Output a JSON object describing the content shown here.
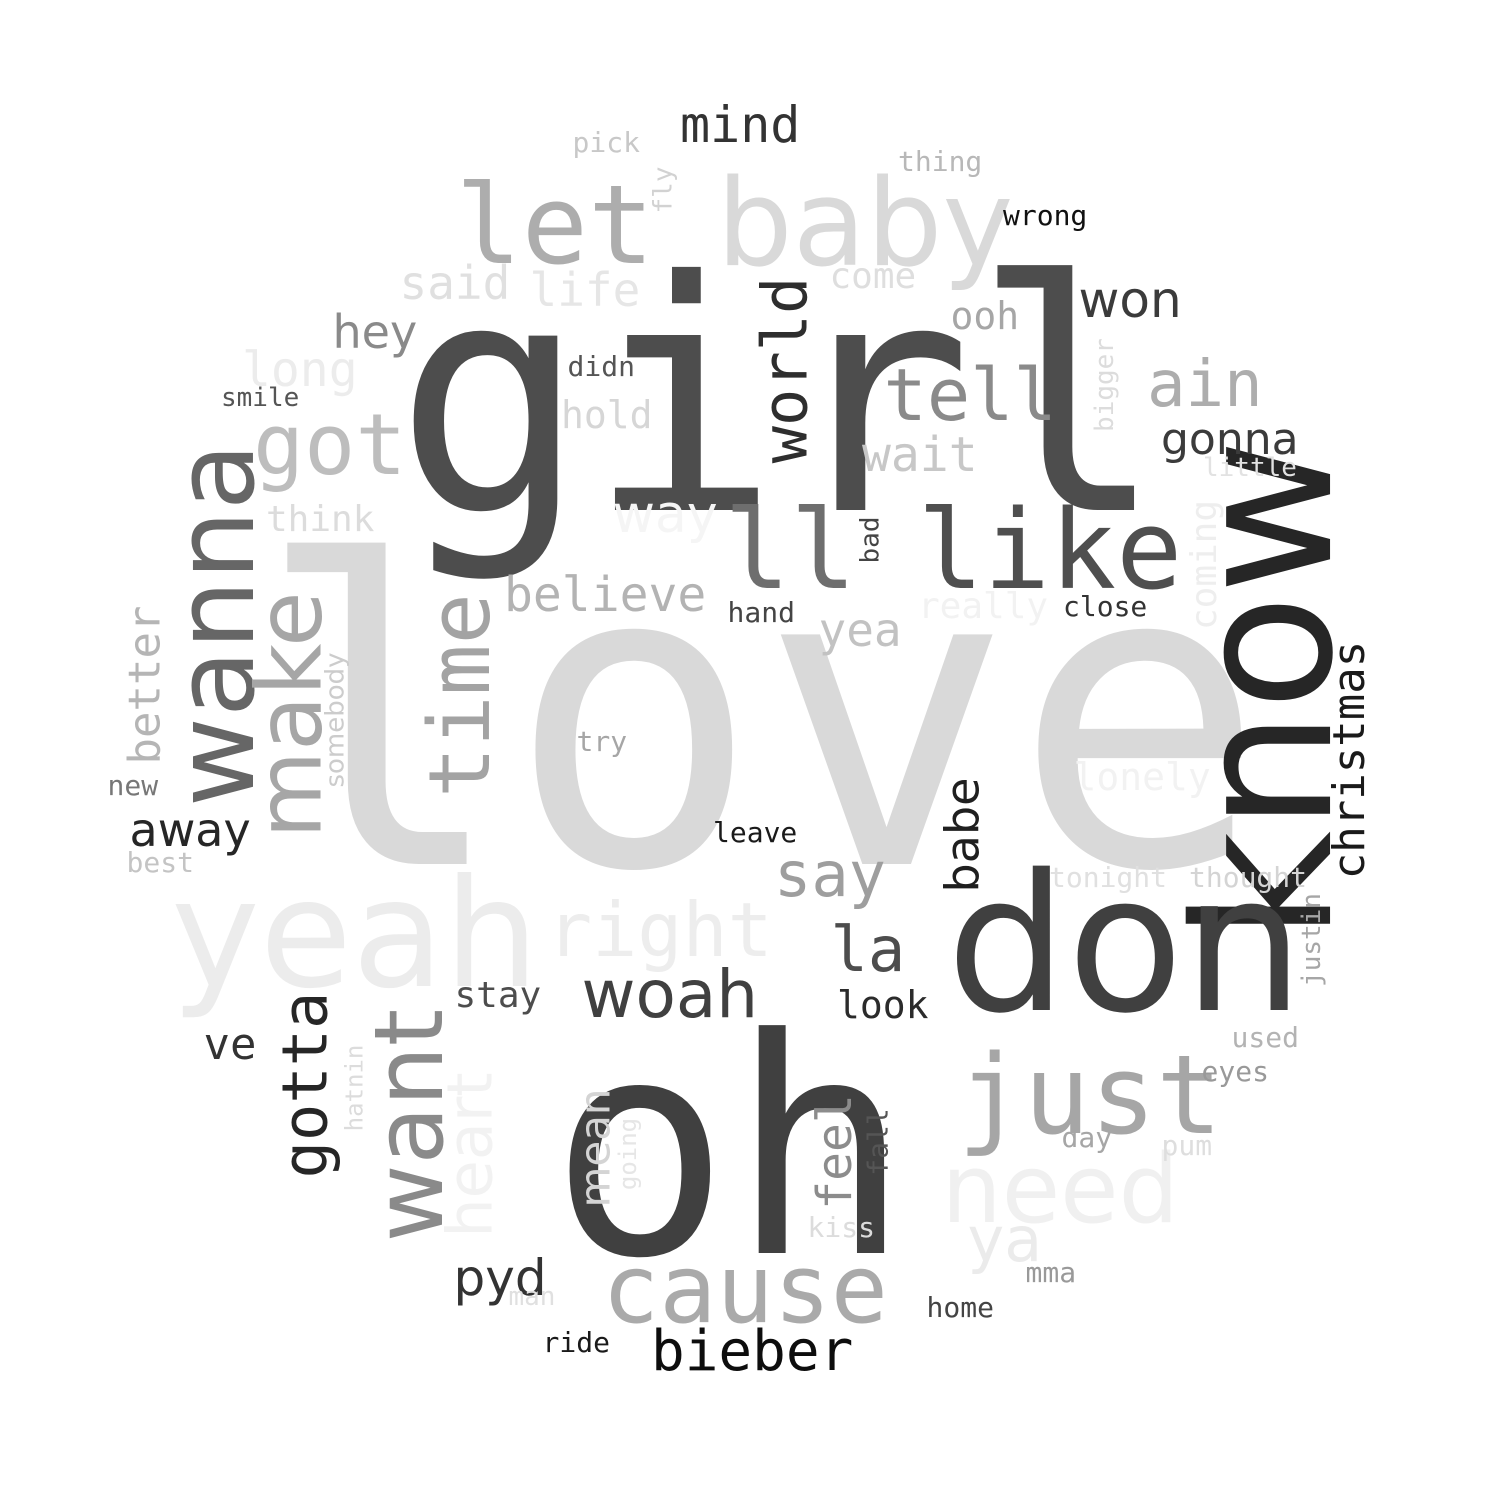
{
  "words": [
    {
      "text": "love",
      "color": "#d9d9d9"
    },
    {
      "text": "girl",
      "color": "#4d4d4d"
    },
    {
      "text": "oh",
      "color": "#404040"
    },
    {
      "text": "know",
      "color": "#262626"
    },
    {
      "text": "don",
      "color": "#404040"
    },
    {
      "text": "yeah",
      "color": "#ececec"
    },
    {
      "text": "baby",
      "color": "#d9d9d9"
    },
    {
      "text": "let",
      "color": "#adadad"
    },
    {
      "text": "like",
      "color": "#4f4f4f"
    },
    {
      "text": "ll",
      "color": "#6e6e6e"
    },
    {
      "text": "wanna",
      "color": "#666666"
    },
    {
      "text": "just",
      "color": "#a6a6a6"
    },
    {
      "text": "cause",
      "color": "#aaaaaa"
    },
    {
      "text": "want",
      "color": "#8a8a8a"
    },
    {
      "text": "need",
      "color": "#f0f0f0"
    },
    {
      "text": "make",
      "color": "#a6a6a6"
    },
    {
      "text": "time",
      "color": "#a3a3a3"
    },
    {
      "text": "got",
      "color": "#bdbdbd"
    },
    {
      "text": "right",
      "color": "#ededed"
    },
    {
      "text": "world",
      "color": "#2e2e2e"
    },
    {
      "text": "tell",
      "color": "#8a8a8a"
    },
    {
      "text": "woah",
      "color": "#404040"
    },
    {
      "text": "gotta",
      "color": "#262626"
    },
    {
      "text": "heart",
      "color": "#f2f2f2"
    },
    {
      "text": "bieber",
      "color": "#0d0d0d"
    },
    {
      "text": "ain",
      "color": "#adadad"
    },
    {
      "text": "christmas",
      "color": "#1a1a1a"
    },
    {
      "text": "say",
      "color": "#9e9e9e"
    },
    {
      "text": "la",
      "color": "#4d4d4d"
    },
    {
      "text": "believe",
      "color": "#b3b3b3"
    },
    {
      "text": "mind",
      "color": "#333333"
    },
    {
      "text": "won",
      "color": "#3b3b3b"
    },
    {
      "text": "ya",
      "color": "#ebebeb"
    },
    {
      "text": "pyd",
      "color": "#333333"
    },
    {
      "text": "babe",
      "color": "#1f1f1f"
    },
    {
      "text": "feel",
      "color": "#8c8c8c"
    },
    {
      "text": "away",
      "color": "#262626"
    },
    {
      "text": "gonna",
      "color": "#3b3b3b"
    },
    {
      "text": "way",
      "color": "#f5f5f5"
    },
    {
      "text": "hey",
      "color": "#8a8a8a"
    },
    {
      "text": "better",
      "color": "#b5b5b5"
    },
    {
      "text": "wait",
      "color": "#c7c7c7"
    },
    {
      "text": "mean",
      "color": "#d4d4d4"
    },
    {
      "text": "yea",
      "color": "#c2c2c2"
    },
    {
      "text": "life",
      "color": "#e6e6e6"
    },
    {
      "text": "said",
      "color": "#e0e0e0"
    },
    {
      "text": "long",
      "color": "#ececec"
    },
    {
      "text": "look",
      "color": "#2b2b2b"
    },
    {
      "text": "ve",
      "color": "#333333"
    },
    {
      "text": "stay",
      "color": "#4d4d4d"
    },
    {
      "text": "ooh",
      "color": "#a6a6a6"
    },
    {
      "text": "think",
      "color": "#dcdcdc"
    },
    {
      "text": "come",
      "color": "#dedede"
    },
    {
      "text": "hold",
      "color": "#d6d6d6"
    },
    {
      "text": "lonely",
      "color": "#f2f2f2"
    },
    {
      "text": "really",
      "color": "#f2f2f2"
    },
    {
      "text": "coming",
      "color": "#eeeeee"
    },
    {
      "text": "somebody",
      "color": "#cccccc"
    },
    {
      "text": "didn",
      "color": "#555555"
    },
    {
      "text": "smile",
      "color": "#555555"
    },
    {
      "text": "hand",
      "color": "#444444"
    },
    {
      "text": "close",
      "color": "#333333"
    },
    {
      "text": "wrong",
      "color": "#111111"
    },
    {
      "text": "thing",
      "color": "#b8b8b8"
    },
    {
      "text": "pick",
      "color": "#c8c8c8"
    },
    {
      "text": "fly",
      "color": "#d2d2d2"
    },
    {
      "text": "bigger",
      "color": "#dcdcdc"
    },
    {
      "text": "little",
      "color": "#e2e2e2"
    },
    {
      "text": "bad",
      "color": "#444444"
    },
    {
      "text": "try",
      "color": "#a6a6a6"
    },
    {
      "text": "leave",
      "color": "#1a1a1a"
    },
    {
      "text": "new",
      "color": "#777777"
    },
    {
      "text": "best",
      "color": "#c4c4c4"
    },
    {
      "text": "tonight",
      "color": "#e0e0e0"
    },
    {
      "text": "thought",
      "color": "#d4d4d4"
    },
    {
      "text": "justin",
      "color": "#a6a6a6"
    },
    {
      "text": "used",
      "color": "#b3b3b3"
    },
    {
      "text": "eyes",
      "color": "#999999"
    },
    {
      "text": "day",
      "color": "#a6a6a6"
    },
    {
      "text": "pum",
      "color": "#dedede"
    },
    {
      "text": "hatnin",
      "color": "#dcdcdc"
    },
    {
      "text": "going",
      "color": "#e6e6e6"
    },
    {
      "text": "fall",
      "color": "#555555"
    },
    {
      "text": "kiss",
      "color": "#dcdcdc"
    },
    {
      "text": "mma",
      "color": "#999999"
    },
    {
      "text": "home",
      "color": "#444444"
    },
    {
      "text": "man",
      "color": "#e0e0e0"
    },
    {
      "text": "ride",
      "color": "#1a1a1a"
    }
  ]
}
